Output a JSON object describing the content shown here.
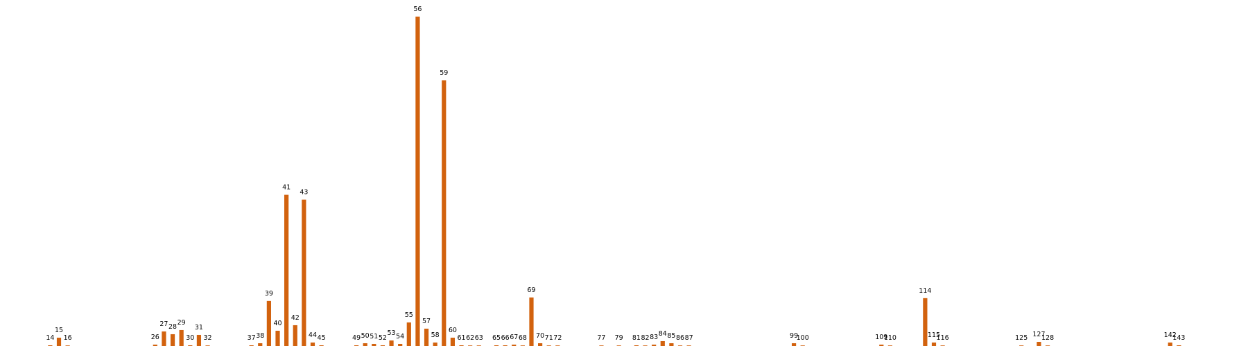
{
  "chart_data": {
    "type": "bar",
    "title": "",
    "xlabel": "",
    "ylabel": "",
    "bar_color": "#d2620e",
    "grid": false,
    "axes_visible": false,
    "categories": [
      "14",
      "15",
      "16",
      "26",
      "27",
      "28",
      "29",
      "30",
      "31",
      "32",
      "37",
      "38",
      "39",
      "40",
      "41",
      "42",
      "43",
      "44",
      "45",
      "49",
      "50",
      "51",
      "52",
      "53",
      "54",
      "55",
      "56",
      "57",
      "58",
      "59",
      "60",
      "61",
      "62",
      "63",
      "65",
      "66",
      "67",
      "68",
      "69",
      "70",
      "71",
      "72",
      "77",
      "79",
      "81",
      "82",
      "83",
      "84",
      "85",
      "86",
      "87",
      "99",
      "100",
      "109",
      "110",
      "114",
      "115",
      "116",
      "125",
      "127",
      "128",
      "142",
      "143"
    ],
    "x": [
      14,
      15,
      16,
      26,
      27,
      28,
      29,
      30,
      31,
      32,
      37,
      38,
      39,
      40,
      41,
      42,
      43,
      44,
      45,
      49,
      50,
      51,
      52,
      53,
      54,
      55,
      56,
      57,
      58,
      59,
      60,
      61,
      62,
      63,
      65,
      66,
      67,
      68,
      69,
      70,
      71,
      72,
      77,
      79,
      81,
      82,
      83,
      84,
      85,
      86,
      87,
      99,
      100,
      109,
      110,
      114,
      115,
      116,
      125,
      127,
      128,
      142,
      143
    ],
    "values": [
      1,
      12,
      0,
      2,
      21,
      17,
      23,
      1,
      16,
      0,
      1,
      4,
      65,
      22,
      218,
      30,
      211,
      5,
      1,
      1,
      4,
      3,
      1,
      8,
      3,
      34,
      475,
      25,
      5,
      383,
      12,
      1,
      0,
      0,
      1,
      1,
      2,
      0,
      70,
      4,
      0,
      0,
      0,
      0,
      1,
      0,
      2,
      7,
      4,
      0,
      0,
      4,
      0,
      2,
      0,
      69,
      5,
      0,
      0,
      6,
      0,
      5,
      1
    ],
    "xlim": [
      8,
      150
    ],
    "ylim": [
      0,
      475
    ]
  }
}
